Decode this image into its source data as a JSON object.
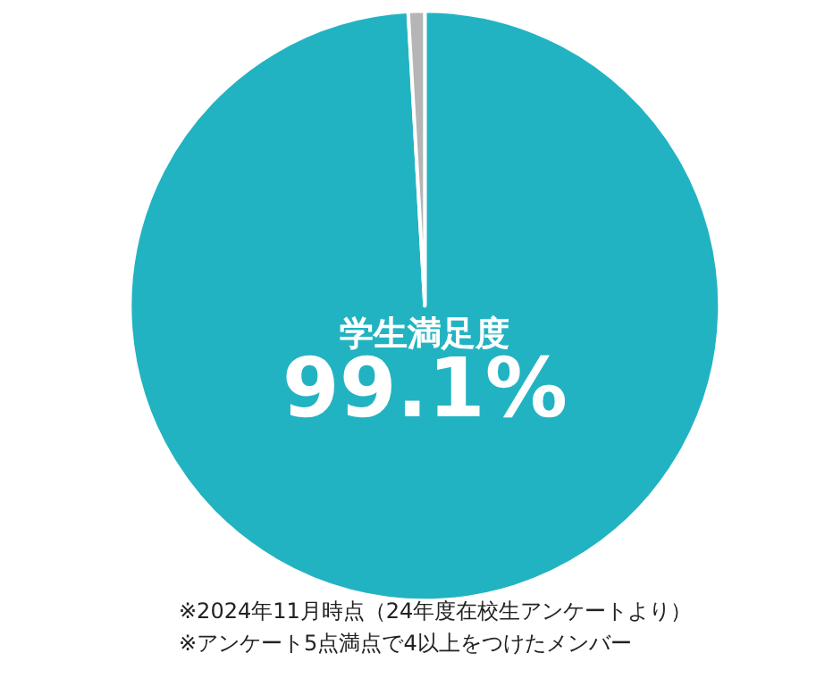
{
  "chart_data": {
    "type": "pie",
    "categories": [
      "学生満足度",
      null
    ],
    "values": [
      99.1,
      0.9
    ],
    "colors": [
      "#22b3c2",
      "#b5b5b5"
    ],
    "value_labels": [
      "99.1%",
      null
    ],
    "legend": false,
    "annotations": [
      "※2024年11月時点（24年度在校生アンケートより）",
      "※アンケート5点満点で4以上をつけたメンバー"
    ]
  }
}
